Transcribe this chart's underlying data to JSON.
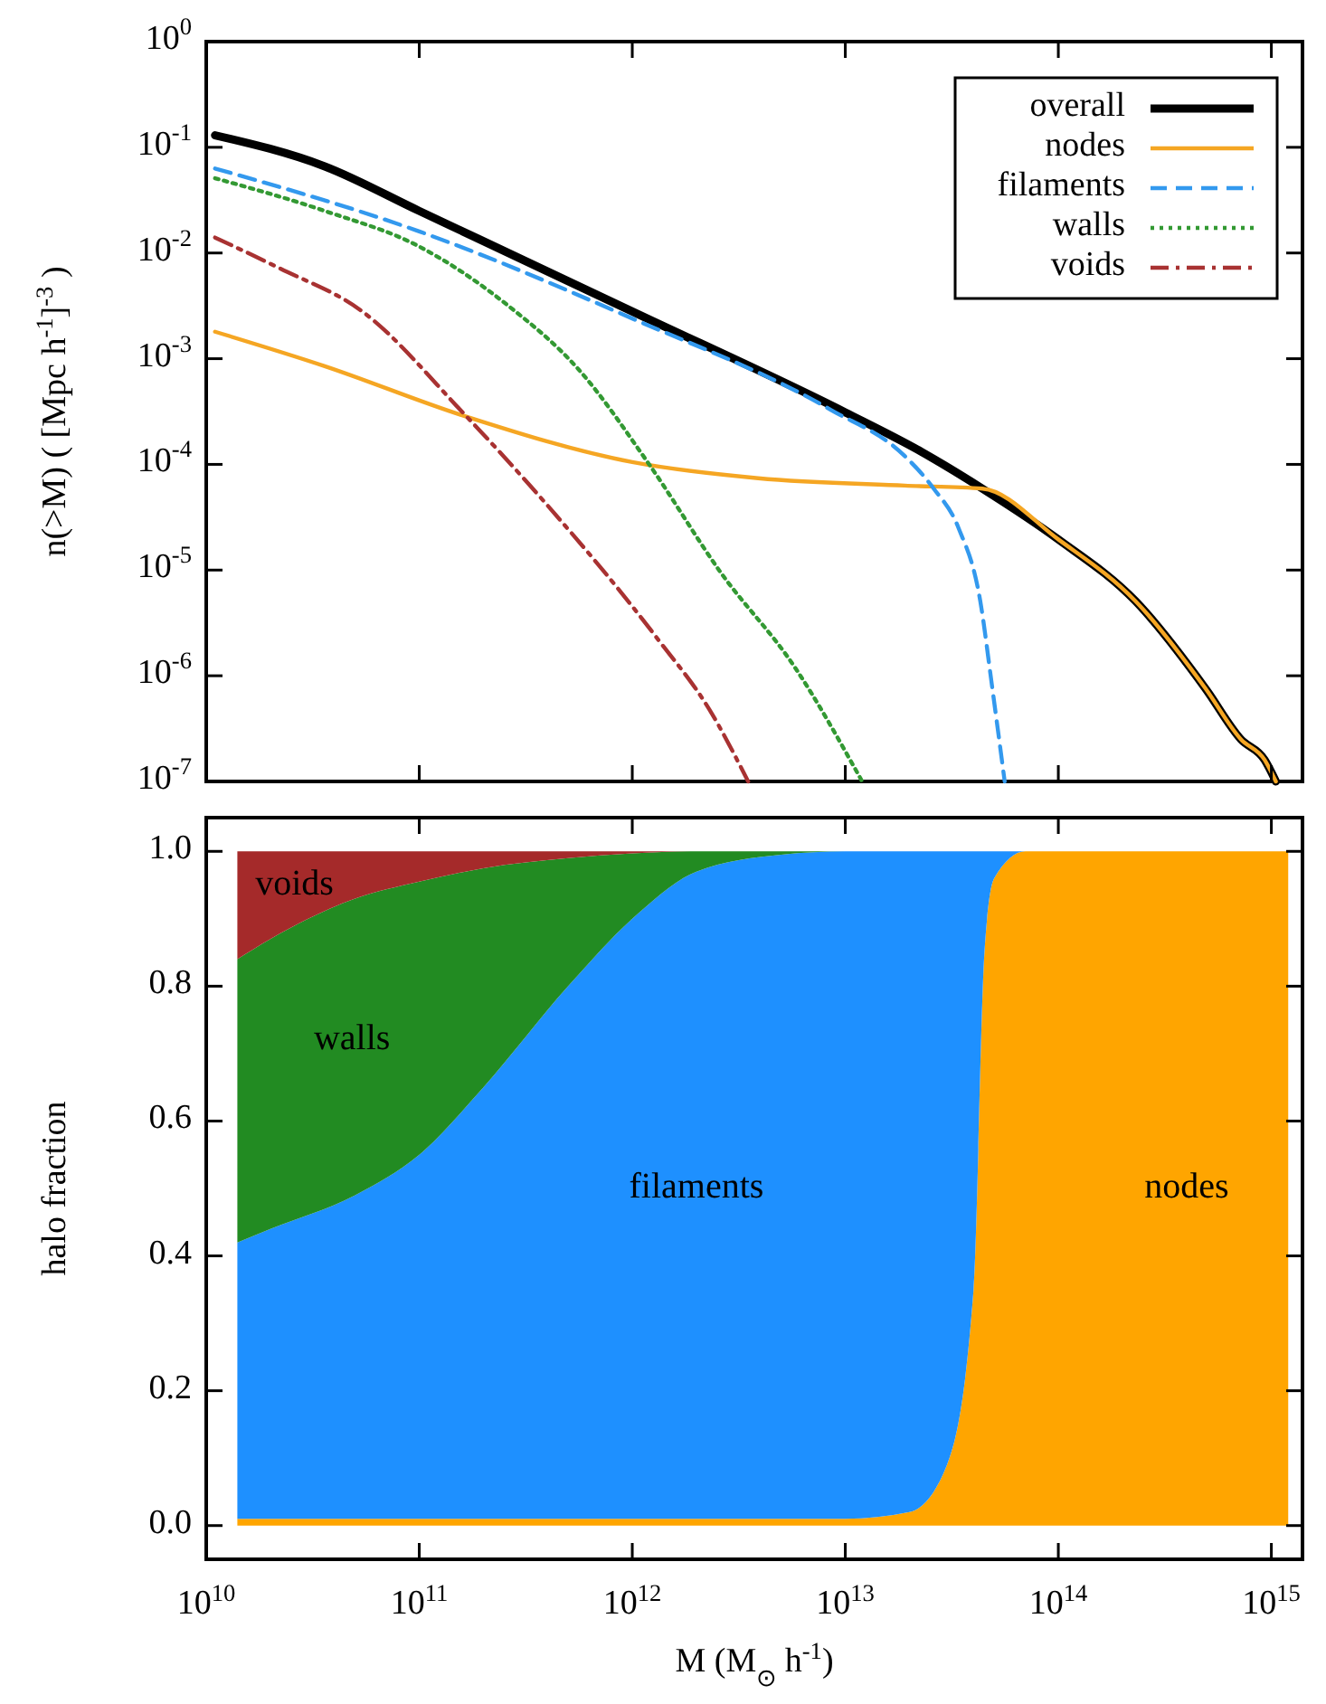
{
  "chart_data": [
    {
      "type": "line",
      "log": "xy",
      "ylabel": "n(>M)  ( [Mpc h$^{-1}$]$^{-3}$ )",
      "xlim": [
        10000000000.0,
        1400000000000000.0
      ],
      "ylim": [
        1e-07,
        1
      ],
      "xticks": [
        10000000000.0,
        100000000000.0,
        1000000000000.0,
        10000000000000.0,
        100000000000000.0,
        1000000000000000.0
      ],
      "yticks": [
        {
          "value": 1e-07,
          "label": "10$^{-7}$"
        },
        {
          "value": 1e-06,
          "label": "10$^{-6}$"
        },
        {
          "value": 1e-05,
          "label": "10$^{-5}$"
        },
        {
          "value": 0.0001,
          "label": "10$^{-4}$"
        },
        {
          "value": 0.001,
          "label": "10$^{-3}$"
        },
        {
          "value": 0.01,
          "label": "10$^{-2}$"
        },
        {
          "value": 0.1,
          "label": "10$^{-1}$"
        },
        {
          "value": 1,
          "label": "10$^{0}$"
        }
      ],
      "tick_labels": "y",
      "legend": "top right",
      "series": [
        {
          "name": "overall",
          "color": "#000000",
          "line_style": "solid",
          "x": [
            11000000000.0,
            36000000000.0,
            100000000000.0,
            1000000000000.0,
            10000000000000.0,
            23000000000000.0,
            44000000000000.0,
            100000000000000.0,
            230000000000000.0,
            490000000000000.0,
            720000000000000.0,
            930000000000000.0,
            1050000000000000.0
          ],
          "values": [
            0.13,
            0.066,
            0.025,
            0.0028,
            0.00031,
            0.00013,
            5.9e-05,
            1.95e-05,
            5.1e-06,
            7.6e-07,
            2.5e-07,
            1.6e-07,
            1e-07
          ]
        },
        {
          "name": "nodes",
          "color": "#f5a623",
          "line_style": "solid",
          "x": [
            11000000000.0,
            36000000000.0,
            160000000000.0,
            1000000000000.0,
            3900000000000.0,
            19000000000000.0,
            44000000000000.0,
            100000000000000.0,
            230000000000000.0,
            490000000000000.0,
            720000000000000.0,
            930000000000000.0,
            1050000000000000.0
          ],
          "values": [
            0.0018,
            0.00085,
            0.00029,
            0.000105,
            7.4e-05,
            6.3e-05,
            5.9e-05,
            1.95e-05,
            5.1e-06,
            7.6e-07,
            2.5e-07,
            1.6e-07,
            1e-07
          ]
        },
        {
          "name": "filaments",
          "color": "#3399ee",
          "line_style": "dashed",
          "x": [
            11000000000.0,
            100000000000.0,
            1000000000000.0,
            8500000000000.0,
            19000000000000.0,
            26000000000000.0,
            34000000000000.0,
            43000000000000.0,
            49000000000000.0,
            56000000000000.0
          ],
          "values": [
            0.063,
            0.016,
            0.0024,
            0.00033,
            0.00012,
            5.9e-05,
            2.5e-05,
            5.1e-06,
            7.6e-07,
            1e-07
          ]
        },
        {
          "name": "walls",
          "color": "#339933",
          "line_style": "dotted",
          "x": [
            11000000000.0,
            36000000000.0,
            100000000000.0,
            260000000000.0,
            560000000000.0,
            1200000000000.0,
            2600000000000.0,
            5800000000000.0,
            12000000000000.0
          ],
          "values": [
            0.051,
            0.025,
            0.0115,
            0.0032,
            0.00079,
            0.0001,
            9.5e-06,
            1.2e-06,
            1e-07
          ]
        },
        {
          "name": "voids",
          "color": "#a83232",
          "line_style": "dashdot",
          "x": [
            11000000000.0,
            22000000000.0,
            54000000000.0,
            160000000000.0,
            380000000000.0,
            1300000000000.0,
            2300000000000.0,
            3500000000000.0
          ],
          "values": [
            0.014,
            0.0072,
            0.0028,
            0.00031,
            4.6e-05,
            2.3e-06,
            4.8e-07,
            1e-07
          ]
        }
      ]
    },
    {
      "type": "area",
      "stacked": true,
      "log": "x",
      "xlabel": "M (M$_{⊙}$ h$^{-1}$)",
      "ylabel": "halo fraction",
      "xlim": [
        10000000000.0,
        1400000000000000.0
      ],
      "ylim": [
        -0.05,
        1.05
      ],
      "xticks": [
        {
          "value": 10000000000.0,
          "label": "10$^{10}$"
        },
        {
          "value": 100000000000.0,
          "label": "10$^{11}$"
        },
        {
          "value": 1000000000000.0,
          "label": "10$^{12}$"
        },
        {
          "value": 10000000000000.0,
          "label": "10$^{13}$"
        },
        {
          "value": 100000000000000.0,
          "label": "10$^{14}$"
        },
        {
          "value": 1000000000000000.0,
          "label": "10$^{15}$"
        }
      ],
      "yticks": [
        {
          "value": 0,
          "label": "0.0"
        },
        0.2,
        0.4,
        0.6,
        0.8,
        {
          "value": 1,
          "label": "1.0"
        }
      ],
      "x": [
        14000000000.0,
        20000000000.0,
        50000000000.0,
        100000000000.0,
        200000000000.0,
        500000000000.0,
        1000000000000.0,
        2000000000000.0,
        5000000000000.0,
        10000000000000.0,
        20000000000000.0,
        30000000000000.0,
        40000000000000.0,
        45000000000000.0,
        50000000000000.0,
        70000000000000.0,
        100000000000000.0,
        1000000000000000.0,
        1200000000000000.0
      ],
      "series": [
        {
          "name": "nodes",
          "color": "#ffa500",
          "values": [
            0.01,
            0.01,
            0.01,
            0.01,
            0.01,
            0.01,
            0.01,
            0.01,
            0.01,
            0.01,
            0.02,
            0.09,
            0.35,
            0.85,
            0.96,
            1,
            1,
            1,
            1
          ]
        },
        {
          "name": "filaments",
          "color": "#1e90ff",
          "values": [
            0.41,
            0.43,
            0.48,
            0.54,
            0.64,
            0.79,
            0.89,
            0.96,
            0.985,
            0.99,
            0.98,
            0.91,
            0.65,
            0.15,
            0.04,
            0,
            0,
            0,
            0
          ]
        },
        {
          "name": "walls",
          "color": "#228b22",
          "values": [
            0.42,
            0.43,
            0.44,
            0.405,
            0.325,
            0.19,
            0.097,
            0.03,
            0.005,
            0,
            0,
            0,
            0,
            0,
            0,
            0,
            0,
            0,
            0
          ]
        },
        {
          "name": "voids",
          "color": "#a52a2a",
          "values": [
            0.16,
            0.13,
            0.07,
            0.045,
            0.025,
            0.01,
            0.003,
            0,
            0,
            0,
            0,
            0,
            0,
            0,
            0,
            0,
            0,
            0,
            0
          ]
        }
      ]
    }
  ]
}
